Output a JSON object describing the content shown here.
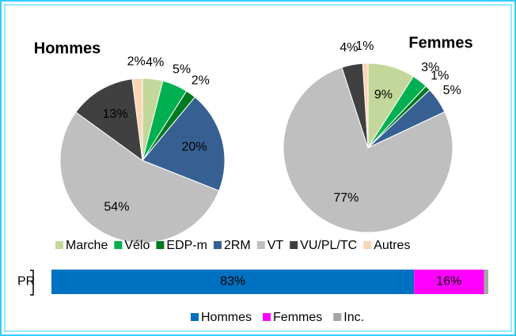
{
  "chart_data": [
    {
      "type": "pie",
      "title": "Hommes",
      "categories": [
        "Marche",
        "Vélo",
        "EDP-m",
        "2RM",
        "VT",
        "VU/PL/TC",
        "Autres"
      ],
      "values": [
        4,
        5,
        2,
        20,
        54,
        13,
        2
      ],
      "value_labels": [
        "4%",
        "5%",
        "2%",
        "20%",
        "54%",
        "13%",
        "2%"
      ],
      "colors": [
        "#c4d79b",
        "#00b050",
        "#007a1f",
        "#376092",
        "#bfbfbf",
        "#404040",
        "#fcd5b4"
      ]
    },
    {
      "type": "pie",
      "title": "Femmes",
      "categories": [
        "Marche",
        "Vélo",
        "EDP-m",
        "2RM",
        "VT",
        "VU/PL/TC",
        "Autres"
      ],
      "values": [
        9,
        3,
        1,
        5,
        77,
        4,
        1
      ],
      "value_labels": [
        "9%",
        "3%",
        "1%",
        "5%",
        "77%",
        "4%",
        "1%"
      ],
      "colors": [
        "#c4d79b",
        "#00b050",
        "#007a1f",
        "#376092",
        "#bfbfbf",
        "#404040",
        "#fcd5b4"
      ]
    },
    {
      "type": "bar",
      "orientation": "horizontal",
      "stacked": true,
      "categories": [
        "PR"
      ],
      "xlim": [
        0,
        100
      ],
      "series": [
        {
          "name": "Hommes",
          "color": "#0070c0",
          "values": [
            83
          ],
          "value_labels": [
            "83%"
          ]
        },
        {
          "name": "Femmes",
          "color": "#ff00ff",
          "values": [
            16
          ],
          "value_labels": [
            "16%"
          ]
        },
        {
          "name": "Inc.",
          "color": "#a6a6a6",
          "values": [
            1
          ]
        }
      ]
    }
  ]
}
